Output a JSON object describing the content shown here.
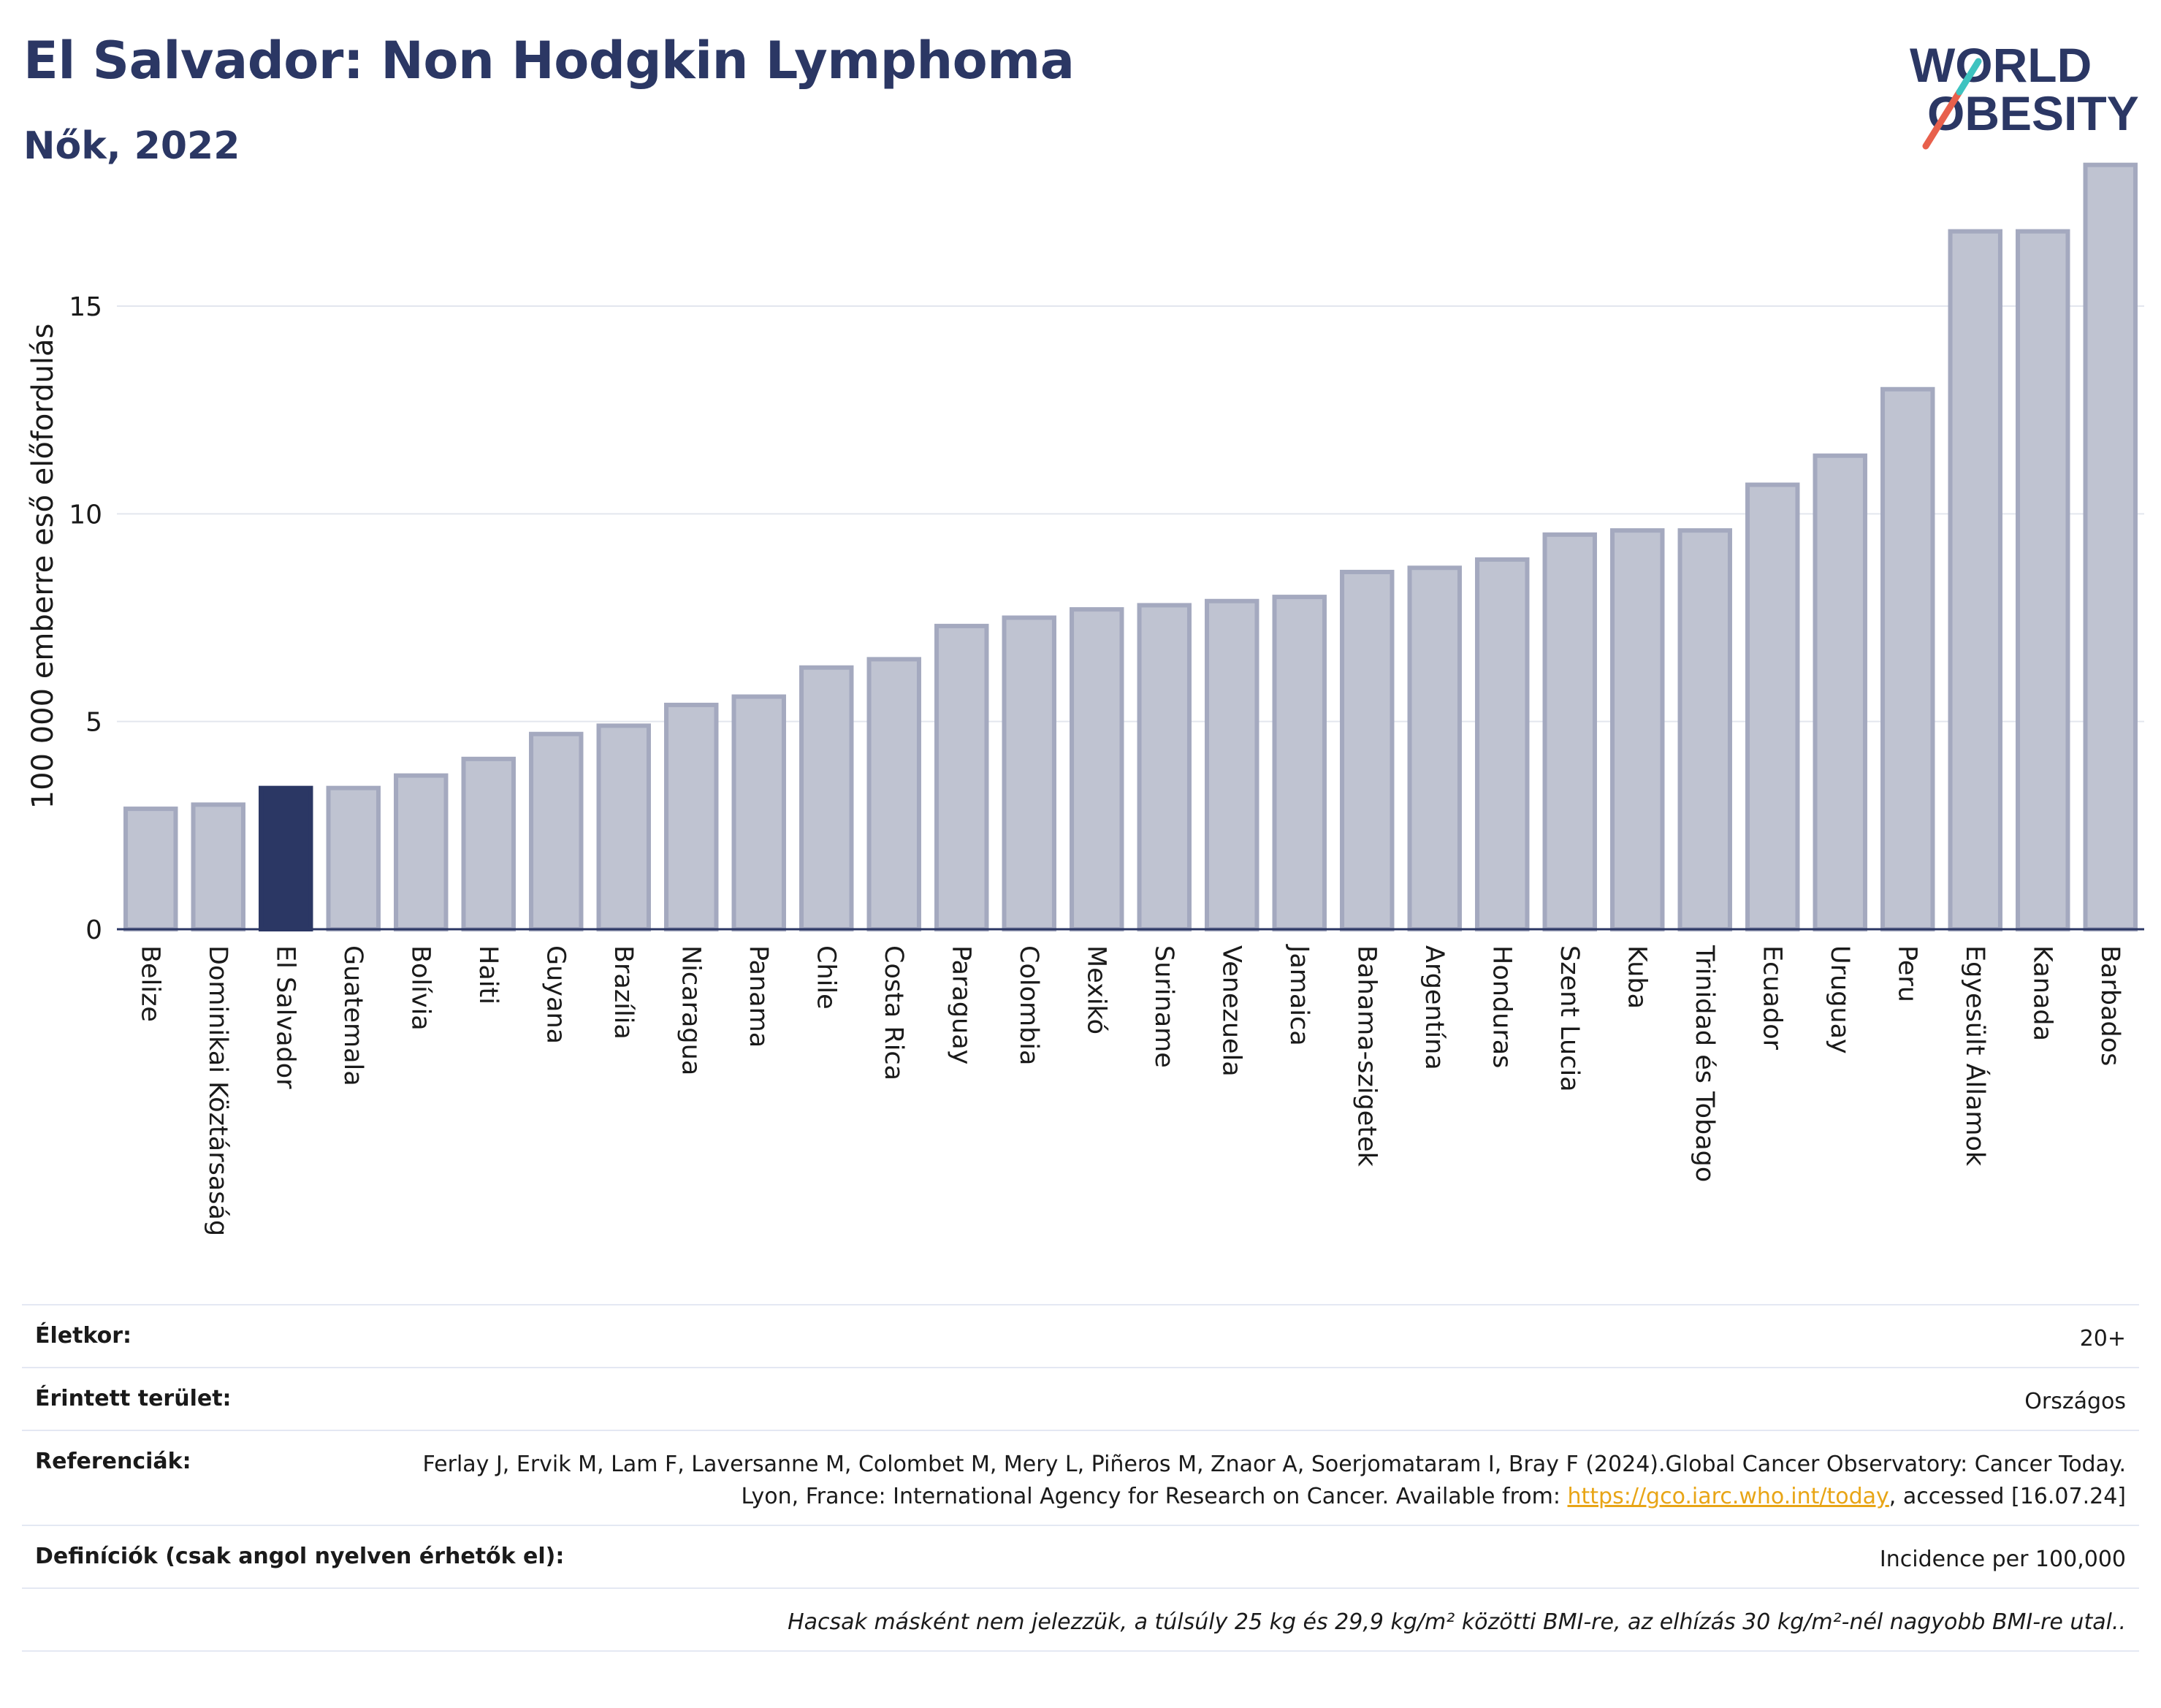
{
  "header": {
    "title": "El Salvador: Non Hodgkin Lymphoma",
    "subtitle": "Nők, 2022",
    "logo_line1": "WORLD",
    "logo_line2": "OBESITY"
  },
  "colors": {
    "title": "#2b3764",
    "bar": "#bfc3d1",
    "bar_stroke": "#a4a9bf",
    "highlight": "#2b3764",
    "logo_red": "#e8604c",
    "logo_teal": "#3ec3c0",
    "link": "#e8a516"
  },
  "chart_data": {
    "type": "bar",
    "title": "El Salvador: Non Hodgkin Lymphoma",
    "subtitle": "Nők, 2022",
    "ylabel": "100 000 emberre eső előfordulás",
    "xlabel": "",
    "ylim": [
      0,
      18.5
    ],
    "yticks": [
      0,
      5,
      10,
      15
    ],
    "grid": true,
    "highlight": "El Salvador",
    "categories": [
      "Belize",
      "Dominikai Köztársaság",
      "El Salvador",
      "Guatemala",
      "Bolívia",
      "Haiti",
      "Guyana",
      "Brazília",
      "Nicaragua",
      "Panama",
      "Chile",
      "Costa Rica",
      "Paraguay",
      "Colombia",
      "Mexikó",
      "Suriname",
      "Venezuela",
      "Jamaica",
      "Bahama-szigetek",
      "Argentína",
      "Honduras",
      "Szent Lucia",
      "Kuba",
      "Trinidad és Tobago",
      "Ecuador",
      "Uruguay",
      "Peru",
      "Egyesült Államok",
      "Kanada",
      "Barbados"
    ],
    "values": [
      2.9,
      3.0,
      3.4,
      3.4,
      3.7,
      4.1,
      4.7,
      4.9,
      5.4,
      5.6,
      6.3,
      6.5,
      7.3,
      7.5,
      7.7,
      7.8,
      7.9,
      8.0,
      8.6,
      8.7,
      8.9,
      9.5,
      9.6,
      9.6,
      10.7,
      11.4,
      13.0,
      16.8,
      16.8,
      18.4
    ]
  },
  "info": {
    "age_label": "Életkor:",
    "age_value": "20+",
    "area_label": "Érintett terület:",
    "area_value": "Országos",
    "ref_label": "Referenciák:",
    "ref_text_1": "Ferlay J, Ervik M, Lam F, Laversanne M, Colombet M, Mery L, Piñeros M, Znaor A, Soerjomataram I, Bray F (2024).Global Cancer Observatory: Cancer Today. Lyon, France: International Agency for Research on Cancer. Available from: ",
    "ref_link": "https://gco.iarc.who.int/today",
    "ref_text_2": ", accessed [16.07.24]",
    "def_label": "Definíciók (csak angol nyelven érhetők el):",
    "def_value": "Incidence per 100,000",
    "note": "Hacsak másként nem jelezzük, a túlsúly 25 kg és 29,9 kg/m² közötti BMI-re, az elhízás 30 kg/m²-nél nagyobb BMI-re utal.."
  }
}
